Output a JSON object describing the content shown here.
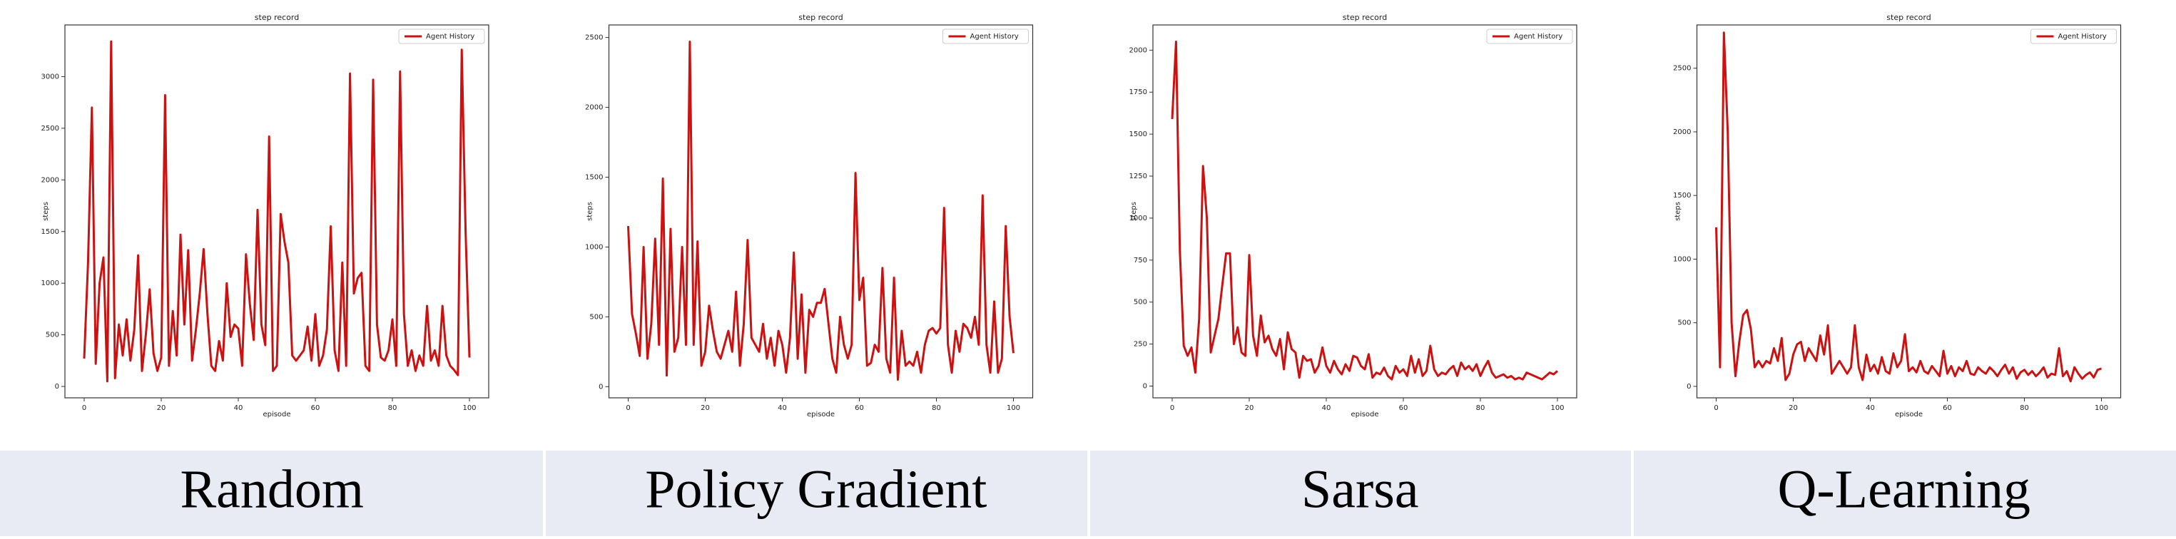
{
  "chart_data": [
    {
      "type": "line",
      "title": "step record",
      "xlabel": "episode",
      "ylabel": "steps",
      "legend": "upper right",
      "x": [
        0,
        1,
        2,
        3,
        4,
        5,
        6,
        7,
        8,
        9,
        10,
        11,
        12,
        13,
        14,
        15,
        16,
        17,
        18,
        19,
        20,
        21,
        22,
        23,
        24,
        25,
        26,
        27,
        28,
        29,
        30,
        31,
        32,
        33,
        34,
        35,
        36,
        37,
        38,
        39,
        40,
        41,
        42,
        43,
        44,
        45,
        46,
        47,
        48,
        49,
        50,
        51,
        52,
        53,
        54,
        55,
        56,
        57,
        58,
        59,
        60,
        61,
        62,
        63,
        64,
        65,
        66,
        67,
        68,
        69,
        70,
        71,
        72,
        73,
        74,
        75,
        76,
        77,
        78,
        79,
        80,
        81,
        82,
        83,
        84,
        85,
        86,
        87,
        88,
        89,
        90,
        91,
        92,
        93,
        94,
        95,
        96,
        97,
        98,
        99,
        100
      ],
      "series": [
        {
          "name": "Agent History",
          "color": "#cc1111",
          "values": [
            270,
            1200,
            2700,
            220,
            1000,
            1250,
            50,
            3340,
            80,
            600,
            300,
            650,
            250,
            550,
            1270,
            150,
            500,
            940,
            320,
            150,
            280,
            2820,
            200,
            730,
            300,
            1470,
            600,
            1320,
            250,
            550,
            900,
            1330,
            700,
            200,
            150,
            440,
            250,
            1000,
            480,
            600,
            560,
            200,
            1280,
            800,
            450,
            1710,
            600,
            400,
            2420,
            150,
            200,
            1670,
            1400,
            1200,
            300,
            250,
            300,
            350,
            580,
            250,
            700,
            200,
            300,
            550,
            1550,
            350,
            150,
            1200,
            200,
            3030,
            900,
            1050,
            1100,
            200,
            150,
            2970,
            600,
            280,
            250,
            350,
            650,
            200,
            3050,
            700,
            200,
            350,
            150,
            300,
            200,
            780,
            250,
            350,
            200,
            780,
            300,
            200,
            160,
            110,
            3260,
            1500,
            280
          ]
        }
      ],
      "xlim": [
        -5,
        105
      ],
      "xticks": [
        0,
        20,
        40,
        60,
        80,
        100
      ],
      "ylim": [
        -110,
        3500
      ],
      "yticks": [
        0,
        500,
        1000,
        1500,
        2000,
        2500,
        3000
      ]
    },
    {
      "type": "line",
      "title": "step record",
      "xlabel": "episode",
      "ylabel": "steps",
      "legend": "upper right",
      "x": [
        0,
        1,
        2,
        3,
        4,
        5,
        6,
        7,
        8,
        9,
        10,
        11,
        12,
        13,
        14,
        15,
        16,
        17,
        18,
        19,
        20,
        21,
        22,
        23,
        24,
        25,
        26,
        27,
        28,
        29,
        30,
        31,
        32,
        33,
        34,
        35,
        36,
        37,
        38,
        39,
        40,
        41,
        42,
        43,
        44,
        45,
        46,
        47,
        48,
        49,
        50,
        51,
        52,
        53,
        54,
        55,
        56,
        57,
        58,
        59,
        60,
        61,
        62,
        63,
        64,
        65,
        66,
        67,
        68,
        69,
        70,
        71,
        72,
        73,
        74,
        75,
        76,
        77,
        78,
        79,
        80,
        81,
        82,
        83,
        84,
        85,
        86,
        87,
        88,
        89,
        90,
        91,
        92,
        93,
        94,
        95,
        96,
        97,
        98,
        99,
        100
      ],
      "series": [
        {
          "name": "Agent History",
          "color": "#cc1111",
          "values": [
            1150,
            520,
            380,
            220,
            1000,
            200,
            450,
            1060,
            300,
            1490,
            80,
            1130,
            250,
            350,
            1000,
            300,
            2470,
            300,
            1040,
            150,
            250,
            580,
            400,
            250,
            200,
            300,
            400,
            250,
            680,
            150,
            450,
            1050,
            350,
            300,
            250,
            450,
            200,
            350,
            150,
            400,
            300,
            100,
            350,
            960,
            200,
            660,
            100,
            550,
            500,
            600,
            600,
            700,
            450,
            200,
            100,
            500,
            300,
            200,
            300,
            1530,
            620,
            780,
            150,
            170,
            300,
            250,
            850,
            200,
            100,
            780,
            50,
            400,
            150,
            180,
            150,
            250,
            100,
            300,
            400,
            420,
            380,
            420,
            1280,
            300,
            100,
            400,
            250,
            450,
            420,
            350,
            500,
            300,
            1370,
            300,
            100,
            610,
            100,
            200,
            1150,
            500,
            240
          ]
        }
      ],
      "xlim": [
        -5,
        105
      ],
      "xticks": [
        0,
        20,
        40,
        60,
        80,
        100
      ],
      "ylim": [
        -80,
        2590
      ],
      "yticks": [
        0,
        500,
        1000,
        1500,
        2000,
        2500
      ]
    },
    {
      "type": "line",
      "title": "step record",
      "xlabel": "episode",
      "ylabel": "steps",
      "legend": "upper right",
      "x": [
        0,
        1,
        2,
        3,
        4,
        5,
        6,
        7,
        8,
        9,
        10,
        11,
        12,
        13,
        14,
        15,
        16,
        17,
        18,
        19,
        20,
        21,
        22,
        23,
        24,
        25,
        26,
        27,
        28,
        29,
        30,
        31,
        32,
        33,
        34,
        35,
        36,
        37,
        38,
        39,
        40,
        41,
        42,
        43,
        44,
        45,
        46,
        47,
        48,
        49,
        50,
        51,
        52,
        53,
        54,
        55,
        56,
        57,
        58,
        59,
        60,
        61,
        62,
        63,
        64,
        65,
        66,
        67,
        68,
        69,
        70,
        71,
        72,
        73,
        74,
        75,
        76,
        77,
        78,
        79,
        80,
        81,
        82,
        83,
        84,
        85,
        86,
        87,
        88,
        89,
        90,
        91,
        92,
        93,
        94,
        95,
        96,
        97,
        98,
        99,
        100
      ],
      "series": [
        {
          "name": "Agent History",
          "color": "#cc1111",
          "values": [
            1590,
            2050,
            800,
            240,
            180,
            230,
            80,
            400,
            1310,
            1000,
            200,
            300,
            400,
            600,
            790,
            790,
            250,
            350,
            200,
            180,
            780,
            300,
            180,
            420,
            260,
            300,
            220,
            180,
            280,
            100,
            320,
            220,
            200,
            50,
            180,
            150,
            160,
            80,
            120,
            230,
            120,
            80,
            150,
            100,
            70,
            130,
            90,
            180,
            170,
            120,
            100,
            190,
            50,
            80,
            70,
            110,
            60,
            40,
            120,
            80,
            100,
            60,
            180,
            80,
            160,
            60,
            90,
            240,
            100,
            60,
            80,
            70,
            100,
            120,
            60,
            140,
            100,
            120,
            90,
            130,
            60,
            110,
            150,
            80,
            50,
            60,
            70,
            50,
            60,
            40,
            50,
            40,
            80,
            70,
            60,
            50,
            40,
            60,
            80,
            70,
            90
          ]
        }
      ],
      "xlim": [
        -5,
        105
      ],
      "xticks": [
        0,
        20,
        40,
        60,
        80,
        100
      ],
      "ylim": [
        -70,
        2150
      ],
      "yticks": [
        0,
        250,
        500,
        750,
        1000,
        1250,
        1500,
        1750,
        2000
      ]
    },
    {
      "type": "line",
      "title": "step record",
      "xlabel": "episode",
      "ylabel": "steps",
      "legend": "upper right",
      "x": [
        0,
        1,
        2,
        3,
        4,
        5,
        6,
        7,
        8,
        9,
        10,
        11,
        12,
        13,
        14,
        15,
        16,
        17,
        18,
        19,
        20,
        21,
        22,
        23,
        24,
        25,
        26,
        27,
        28,
        29,
        30,
        31,
        32,
        33,
        34,
        35,
        36,
        37,
        38,
        39,
        40,
        41,
        42,
        43,
        44,
        45,
        46,
        47,
        48,
        49,
        50,
        51,
        52,
        53,
        54,
        55,
        56,
        57,
        58,
        59,
        60,
        61,
        62,
        63,
        64,
        65,
        66,
        67,
        68,
        69,
        70,
        71,
        72,
        73,
        74,
        75,
        76,
        77,
        78,
        79,
        80,
        81,
        82,
        83,
        84,
        85,
        86,
        87,
        88,
        89,
        90,
        91,
        92,
        93,
        94,
        95,
        96,
        97,
        98,
        99,
        100
      ],
      "series": [
        {
          "name": "Agent History",
          "color": "#cc1111",
          "values": [
            1250,
            150,
            2780,
            2000,
            500,
            80,
            350,
            560,
            600,
            450,
            150,
            200,
            150,
            200,
            180,
            300,
            200,
            380,
            50,
            100,
            250,
            330,
            350,
            200,
            300,
            250,
            200,
            400,
            250,
            480,
            100,
            150,
            200,
            150,
            100,
            150,
            480,
            150,
            50,
            250,
            120,
            170,
            100,
            230,
            120,
            100,
            260,
            150,
            200,
            410,
            120,
            150,
            110,
            200,
            120,
            100,
            160,
            120,
            80,
            280,
            100,
            160,
            80,
            150,
            120,
            200,
            100,
            90,
            150,
            120,
            100,
            150,
            120,
            80,
            130,
            170,
            100,
            150,
            60,
            110,
            130,
            90,
            120,
            80,
            110,
            150,
            70,
            100,
            90,
            300,
            80,
            120,
            40,
            150,
            100,
            60,
            90,
            110,
            70,
            130,
            140
          ]
        }
      ],
      "xlim": [
        -5,
        105
      ],
      "xticks": [
        0,
        20,
        40,
        60,
        80,
        100
      ],
      "ylim": [
        -90,
        2840
      ],
      "yticks": [
        0,
        500,
        1000,
        1500,
        2000,
        2500
      ]
    }
  ],
  "captions": [
    "Random",
    "Policy Gradient",
    "Sarsa",
    "Q-Learning"
  ]
}
